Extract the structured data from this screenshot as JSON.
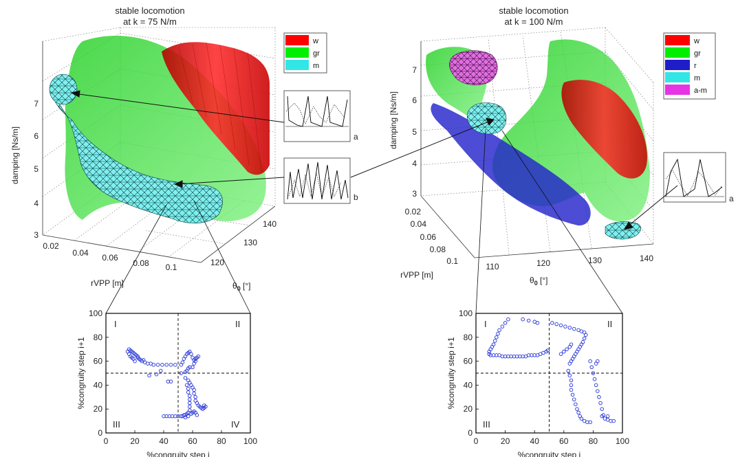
{
  "colors": {
    "w": "#ff0000",
    "gr": "#00ee00",
    "r": "#1e1ec8",
    "m": "#33e6e6",
    "a-m": "#e633e6",
    "scatter": "#1f2fd6"
  },
  "left": {
    "title_line1": "stable locomotion",
    "title_line2": "at k = 75 N/m",
    "legend": [
      {
        "key": "w",
        "label": "w",
        "color": "#ff0000"
      },
      {
        "key": "gr",
        "label": "gr",
        "color": "#00ee00"
      },
      {
        "key": "m",
        "label": "m",
        "color": "#33e6e6"
      }
    ],
    "zlabel": "damping [Ns/m]",
    "xlabel": "rVPP [m]",
    "ylabel": "θ",
    "ylabel_sub": "0",
    "ylabel_unit": " [°]",
    "zticks": [
      "3",
      "4",
      "5",
      "6",
      "7"
    ],
    "xticks": [
      "0.02",
      "0.04",
      "0.06",
      "0.08",
      "0.1"
    ],
    "yticks": [
      "120",
      "130",
      "140"
    ],
    "inset_labels": [
      "a",
      "b"
    ]
  },
  "right": {
    "title_line1": "stable locomotion",
    "title_line2": "at k = 100 N/m",
    "legend": [
      {
        "key": "w",
        "label": "w",
        "color": "#ff0000"
      },
      {
        "key": "gr",
        "label": "gr",
        "color": "#00ee00"
      },
      {
        "key": "r",
        "label": "r",
        "color": "#1e1ec8"
      },
      {
        "key": "m",
        "label": "m",
        "color": "#33e6e6"
      },
      {
        "key": "a-m",
        "label": "a-m",
        "color": "#e633e6"
      }
    ],
    "zlabel": "damping [Ns/m]",
    "xlabel": "rVPP [m]",
    "ylabel": "θ",
    "ylabel_sub": "0",
    "ylabel_unit": " [°]",
    "zticks": [
      "3",
      "4",
      "5",
      "6",
      "7"
    ],
    "xticks": [
      "0.02",
      "0.04",
      "0.06",
      "0.08",
      "0.1"
    ],
    "yticks": [
      "110",
      "120",
      "130",
      "140"
    ],
    "inset_labels": [
      "a"
    ]
  },
  "chart_data": [
    {
      "type": "scatter",
      "panel": "bottom-left",
      "xlabel": "%congruity step i",
      "ylabel": "%congruity step i+1",
      "xlim": [
        0,
        100
      ],
      "ylim": [
        0,
        100
      ],
      "xticks": [
        0,
        20,
        40,
        60,
        80,
        100
      ],
      "yticks": [
        0,
        20,
        40,
        60,
        80,
        100
      ],
      "quadrants": [
        "I",
        "II",
        "III",
        "IV"
      ],
      "dividers": {
        "x": 50,
        "y": 50
      },
      "points": [
        [
          15,
          68
        ],
        [
          16,
          70
        ],
        [
          17,
          69
        ],
        [
          18,
          68
        ],
        [
          19,
          67
        ],
        [
          20,
          66
        ],
        [
          21,
          65
        ],
        [
          22,
          64
        ],
        [
          23,
          62
        ],
        [
          24,
          61
        ],
        [
          25,
          60
        ],
        [
          27,
          59
        ],
        [
          29,
          58
        ],
        [
          31,
          58
        ],
        [
          33,
          57
        ],
        [
          36,
          57
        ],
        [
          39,
          57
        ],
        [
          42,
          57
        ],
        [
          45,
          57
        ],
        [
          48,
          57
        ],
        [
          16,
          66
        ],
        [
          17,
          64
        ],
        [
          18,
          63
        ],
        [
          19,
          62
        ],
        [
          22,
          63
        ],
        [
          20,
          60
        ],
        [
          26,
          61
        ],
        [
          35,
          49
        ],
        [
          38,
          52
        ],
        [
          43,
          43
        ],
        [
          45,
          43
        ],
        [
          30,
          48
        ],
        [
          52,
          57
        ],
        [
          53,
          59
        ],
        [
          54,
          62
        ],
        [
          55,
          64
        ],
        [
          56,
          66
        ],
        [
          57,
          67
        ],
        [
          58,
          68
        ],
        [
          59,
          66
        ],
        [
          60,
          63
        ],
        [
          61,
          61
        ],
        [
          62,
          62
        ],
        [
          63,
          63
        ],
        [
          64,
          64
        ],
        [
          62,
          60
        ],
        [
          61,
          58
        ],
        [
          60,
          55
        ],
        [
          58,
          55
        ],
        [
          57,
          54
        ],
        [
          56,
          52
        ],
        [
          55,
          51
        ],
        [
          52,
          50
        ],
        [
          55,
          46
        ],
        [
          57,
          44
        ],
        [
          58,
          42
        ],
        [
          59,
          40
        ],
        [
          60,
          38
        ],
        [
          61,
          36
        ],
        [
          61,
          33
        ],
        [
          62,
          30
        ],
        [
          62,
          27
        ],
        [
          63,
          25
        ],
        [
          64,
          23
        ],
        [
          65,
          22
        ],
        [
          66,
          21
        ],
        [
          67,
          20
        ],
        [
          68,
          21
        ],
        [
          69,
          22
        ],
        [
          68,
          23
        ],
        [
          56,
          40
        ],
        [
          57,
          37
        ],
        [
          57,
          34
        ],
        [
          58,
          31
        ],
        [
          58,
          28
        ],
        [
          58,
          25
        ],
        [
          58,
          22
        ],
        [
          58,
          19
        ],
        [
          57,
          17
        ],
        [
          56,
          16
        ],
        [
          55,
          15
        ],
        [
          54,
          15
        ],
        [
          53,
          14
        ],
        [
          52,
          14
        ],
        [
          50,
          14
        ],
        [
          48,
          14
        ],
        [
          46,
          14
        ],
        [
          44,
          14
        ],
        [
          42,
          14
        ],
        [
          40,
          14
        ],
        [
          59,
          16
        ],
        [
          60,
          17
        ],
        [
          61,
          18
        ],
        [
          62,
          17
        ],
        [
          63,
          15
        ],
        [
          55,
          13
        ],
        [
          57,
          14
        ]
      ]
    },
    {
      "type": "scatter",
      "panel": "bottom-right",
      "xlabel": "%congruity step i",
      "ylabel": "%congruity step i+1",
      "xlim": [
        0,
        100
      ],
      "ylim": [
        0,
        100
      ],
      "xticks": [
        0,
        20,
        40,
        60,
        80,
        100
      ],
      "yticks": [
        0,
        20,
        40,
        60,
        80,
        100
      ],
      "quadrants": [
        "I",
        "II",
        "III"
      ],
      "dividers": {
        "x": 50,
        "y": 50
      },
      "points": [
        [
          10,
          65
        ],
        [
          12,
          65
        ],
        [
          14,
          65
        ],
        [
          16,
          65
        ],
        [
          18,
          64
        ],
        [
          20,
          64
        ],
        [
          22,
          64
        ],
        [
          24,
          64
        ],
        [
          26,
          64
        ],
        [
          28,
          64
        ],
        [
          30,
          64
        ],
        [
          32,
          64
        ],
        [
          34,
          64
        ],
        [
          36,
          65
        ],
        [
          38,
          65
        ],
        [
          40,
          65
        ],
        [
          42,
          65
        ],
        [
          44,
          66
        ],
        [
          46,
          67
        ],
        [
          48,
          68
        ],
        [
          49,
          69
        ],
        [
          9,
          66
        ],
        [
          9,
          68
        ],
        [
          10,
          70
        ],
        [
          11,
          72
        ],
        [
          12,
          74
        ],
        [
          13,
          77
        ],
        [
          14,
          80
        ],
        [
          15,
          83
        ],
        [
          16,
          86
        ],
        [
          18,
          89
        ],
        [
          20,
          92
        ],
        [
          22,
          95
        ],
        [
          32,
          95
        ],
        [
          36,
          94
        ],
        [
          40,
          93
        ],
        [
          42,
          92
        ],
        [
          52,
          92
        ],
        [
          55,
          91
        ],
        [
          58,
          90
        ],
        [
          61,
          89
        ],
        [
          64,
          88
        ],
        [
          67,
          87
        ],
        [
          70,
          86
        ],
        [
          72,
          85
        ],
        [
          74,
          84
        ],
        [
          75,
          82
        ],
        [
          74,
          79
        ],
        [
          73,
          76
        ],
        [
          72,
          74
        ],
        [
          71,
          72
        ],
        [
          70,
          70
        ],
        [
          69,
          68
        ],
        [
          68,
          66
        ],
        [
          67,
          64
        ],
        [
          66,
          62
        ],
        [
          65,
          60
        ],
        [
          64,
          58
        ],
        [
          58,
          66
        ],
        [
          60,
          68
        ],
        [
          62,
          70
        ],
        [
          64,
          72
        ],
        [
          65,
          74
        ],
        [
          63,
          52
        ],
        [
          64,
          48
        ],
        [
          65,
          44
        ],
        [
          65,
          40
        ],
        [
          65,
          36
        ],
        [
          66,
          32
        ],
        [
          67,
          28
        ],
        [
          68,
          24
        ],
        [
          69,
          20
        ],
        [
          70,
          17
        ],
        [
          71,
          14
        ],
        [
          72,
          12
        ],
        [
          74,
          10
        ],
        [
          76,
          9
        ],
        [
          78,
          9
        ],
        [
          78,
          60
        ],
        [
          79,
          55
        ],
        [
          80,
          50
        ],
        [
          81,
          45
        ],
        [
          82,
          40
        ],
        [
          83,
          35
        ],
        [
          84,
          30
        ],
        [
          85,
          25
        ],
        [
          86,
          20
        ],
        [
          87,
          15
        ],
        [
          88,
          12
        ],
        [
          90,
          11
        ],
        [
          92,
          10
        ],
        [
          94,
          10
        ],
        [
          83,
          60
        ],
        [
          82,
          58
        ],
        [
          86,
          14
        ],
        [
          90,
          14
        ]
      ]
    }
  ]
}
